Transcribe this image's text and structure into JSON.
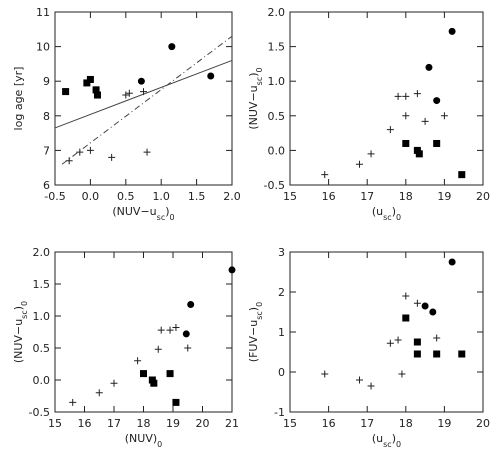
{
  "chart_data": [
    {
      "type": "scatter",
      "xlabel": [
        "(NUV−u",
        "sc",
        ")",
        "0"
      ],
      "ylabel": [
        "log age [yr]"
      ],
      "xlim": [
        -0.5,
        2.0
      ],
      "xticks": [
        -0.5,
        {
          "value": 0,
          "label": "0.0"
        },
        0.5,
        {
          "value": 1,
          "label": "1.0"
        },
        1.5,
        {
          "value": 2,
          "label": "2.0"
        }
      ],
      "ylim": [
        6,
        11
      ],
      "yticks": [
        6,
        7,
        8,
        9,
        10,
        11
      ],
      "series": [
        {
          "marker": "square",
          "x": [
            -0.35,
            -0.05,
            0.0,
            0.08,
            0.1
          ],
          "values": [
            8.7,
            8.95,
            9.05,
            8.75,
            8.6
          ]
        },
        {
          "marker": "circle",
          "x": [
            0.72,
            1.15,
            1.7
          ],
          "values": [
            9.0,
            10.0,
            9.15
          ]
        },
        {
          "marker": "plus",
          "x": [
            -0.3,
            -0.15,
            0.0,
            0.3,
            0.5,
            0.55,
            0.75,
            0.8
          ],
          "values": [
            6.7,
            6.95,
            7.0,
            6.8,
            8.6,
            8.65,
            8.7,
            6.95
          ]
        },
        {
          "marker": "line",
          "dash": "solid",
          "x": [
            -0.5,
            2.0
          ],
          "values": [
            7.65,
            9.6
          ]
        },
        {
          "marker": "line",
          "dash": "dashdot",
          "x": [
            -0.4,
            2.0
          ],
          "values": [
            6.6,
            10.3
          ]
        }
      ]
    },
    {
      "type": "scatter",
      "xlabel": [
        "(u",
        "sc",
        ")",
        "0"
      ],
      "ylabel": [
        "(NUV−u",
        "sc",
        ")",
        "0"
      ],
      "xlim": [
        15,
        20
      ],
      "xticks": [
        15,
        16,
        17,
        18,
        19,
        20
      ],
      "ylim": [
        -0.5,
        2.0
      ],
      "yticks": [
        -0.5,
        {
          "value": 0,
          "label": "0.0"
        },
        0.5,
        {
          "value": 1,
          "label": "1.0"
        },
        1.5,
        {
          "value": 2,
          "label": "2.0"
        }
      ],
      "series": [
        {
          "marker": "square",
          "x": [
            18.0,
            18.3,
            18.35,
            18.8,
            19.45
          ],
          "values": [
            0.1,
            0.0,
            -0.05,
            0.1,
            -0.35
          ]
        },
        {
          "marker": "circle",
          "x": [
            18.6,
            18.8,
            19.2
          ],
          "values": [
            1.2,
            0.72,
            1.72
          ]
        },
        {
          "marker": "plus",
          "x": [
            15.9,
            16.8,
            17.1,
            17.6,
            17.8,
            18.0,
            18.3,
            18.0,
            18.5,
            19.0
          ],
          "values": [
            -0.35,
            -0.2,
            -0.05,
            0.3,
            0.78,
            0.78,
            0.82,
            0.5,
            0.42,
            0.5
          ]
        }
      ]
    },
    {
      "type": "scatter",
      "xlabel": [
        "(NUV)",
        "0"
      ],
      "ylabel": [
        "(NUV−u",
        "sc",
        ")",
        "0"
      ],
      "xlim": [
        15,
        21
      ],
      "xticks": [
        15,
        16,
        17,
        18,
        19,
        20,
        21
      ],
      "ylim": [
        -0.5,
        2.0
      ],
      "yticks": [
        -0.5,
        {
          "value": 0,
          "label": "0.0"
        },
        0.5,
        {
          "value": 1,
          "label": "1.0"
        },
        1.5,
        {
          "value": 2,
          "label": "2.0"
        }
      ],
      "series": [
        {
          "marker": "square",
          "x": [
            18.0,
            18.3,
            18.35,
            18.9,
            19.1
          ],
          "values": [
            0.1,
            0.0,
            -0.05,
            0.1,
            -0.35
          ]
        },
        {
          "marker": "circle",
          "x": [
            19.6,
            19.45,
            21.0
          ],
          "values": [
            1.18,
            0.72,
            1.72
          ]
        },
        {
          "marker": "plus",
          "x": [
            15.6,
            16.5,
            17.0,
            17.8,
            18.5,
            18.6,
            18.9,
            19.1,
            19.5
          ],
          "values": [
            -0.35,
            -0.2,
            -0.05,
            0.3,
            0.48,
            0.78,
            0.78,
            0.82,
            0.5
          ]
        }
      ]
    },
    {
      "type": "scatter",
      "xlabel": [
        "(u",
        "sc",
        ")",
        "0"
      ],
      "ylabel": [
        "(FUV−u",
        "sc",
        ")",
        "0"
      ],
      "xlim": [
        15,
        20
      ],
      "xticks": [
        15,
        16,
        17,
        18,
        19,
        20
      ],
      "ylim": [
        -1,
        3
      ],
      "yticks": [
        -1,
        0,
        1,
        2,
        3
      ],
      "series": [
        {
          "marker": "square",
          "x": [
            18.0,
            18.3,
            18.3,
            18.8,
            19.45
          ],
          "values": [
            1.35,
            0.75,
            0.45,
            0.45,
            0.45
          ]
        },
        {
          "marker": "circle",
          "x": [
            18.5,
            18.7,
            19.2
          ],
          "values": [
            1.65,
            1.5,
            2.75
          ]
        },
        {
          "marker": "plus",
          "x": [
            15.9,
            16.8,
            17.1,
            17.6,
            17.8,
            17.9,
            18.0,
            18.3,
            18.8
          ],
          "values": [
            -0.05,
            -0.2,
            -0.35,
            0.72,
            0.8,
            -0.05,
            1.9,
            1.72,
            0.85
          ]
        }
      ]
    }
  ]
}
